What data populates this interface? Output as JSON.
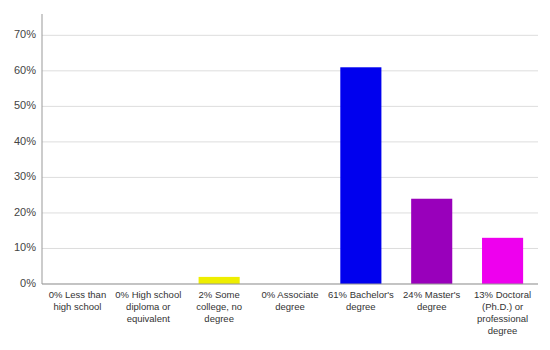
{
  "chart_data": {
    "type": "bar",
    "categories": [
      "0% Less than\nhigh school",
      "0% High school\ndiploma or\nequivalent",
      "2% Some\ncollege, no\ndegree",
      "0% Associate\ndegree",
      "61% Bachelor's\ndegree",
      "24% Master's\ndegree",
      "13% Doctoral\n(Ph.D.) or\nprofessional\ndegree"
    ],
    "values": [
      0,
      0,
      2,
      0,
      61,
      24,
      13
    ],
    "colors": [
      "#dd0000",
      "#ee8800",
      "#eeee00",
      "#008800",
      "#0000ee",
      "#9900bb",
      "#ee00ee"
    ],
    "ylim": [
      0,
      76
    ],
    "yticks": [
      {
        "value": 0,
        "label": "0%"
      },
      {
        "value": 10,
        "label": "10%"
      },
      {
        "value": 20,
        "label": "20%"
      },
      {
        "value": 30,
        "label": "30%"
      },
      {
        "value": 40,
        "label": "40%"
      },
      {
        "value": 50,
        "label": "50%"
      },
      {
        "value": 60,
        "label": "60%"
      },
      {
        "value": 70,
        "label": "70%"
      }
    ],
    "grid": true
  }
}
